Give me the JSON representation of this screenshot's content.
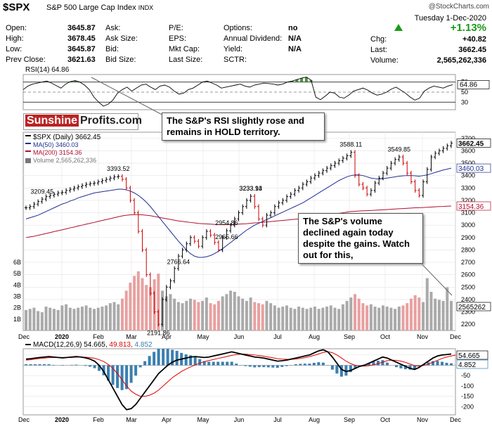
{
  "header": {
    "symbol": "$SPX",
    "name": "S&P 500 Large Cap Index",
    "exchange": "INDX",
    "copyright": "@StockCharts.com",
    "date": "Tuesday 1-Dec-2020",
    "col1": [
      {
        "label": "Open:",
        "value": "3645.87"
      },
      {
        "label": "High:",
        "value": "3678.45"
      },
      {
        "label": "Low:",
        "value": "3645.87"
      },
      {
        "label": "Prev Close:",
        "value": "3621.63"
      }
    ],
    "col2": [
      {
        "label": "Ask:",
        "value": ""
      },
      {
        "label": "Ask Size:",
        "value": ""
      },
      {
        "label": "Bid:",
        "value": ""
      },
      {
        "label": "Bid Size:",
        "value": ""
      }
    ],
    "col3": [
      {
        "label": "P/E:",
        "value": ""
      },
      {
        "label": "EPS:",
        "value": ""
      },
      {
        "label": "Mkt Cap:",
        "value": ""
      },
      {
        "label": "Last Size:",
        "value": ""
      }
    ],
    "col4": [
      {
        "label": "Options:",
        "value": "no"
      },
      {
        "label": "Annual Dividend:",
        "value": "N/A"
      },
      {
        "label": "Yield:",
        "value": "N/A"
      },
      {
        "label": "SCTR:",
        "value": ""
      }
    ],
    "change_pct": "+1.13%",
    "chg_label": "Chg:",
    "chg_value": "+40.82",
    "last_label": "Last:",
    "last_value": "3662.45",
    "volume_label": "Volume:",
    "volume_value": "2,565,262,336"
  },
  "callouts": {
    "rsi": "The S&P's RSI slightly rose and remains in HOLD territory.",
    "volume": "The S&P's volume declined again today despite the gains. Watch out for this,"
  },
  "logo": {
    "part1": "Sunshine",
    "part2": "Profits.com"
  },
  "colors": {
    "up": "#000000",
    "down": "#cc0000",
    "ma50": "#1f2f8f",
    "ma200": "#b01030",
    "vol_up": "#aaaaaa",
    "vol_down": "#e8a0a0",
    "rsi_fill": "#4f8f3f",
    "macd": "#000000",
    "signal": "#e00000",
    "hist": "#3a7fb0"
  },
  "chart_data": [
    {
      "type": "line",
      "panel": "RSI",
      "title": "RSI(14) 64.86",
      "yticks": [
        70,
        50,
        30
      ],
      "last_value": 64.86,
      "ylim": [
        15,
        85
      ],
      "values": [
        55,
        62,
        66,
        68,
        70,
        72,
        68,
        63,
        58,
        66,
        71,
        73,
        70,
        64,
        55,
        40,
        30,
        22,
        26,
        34,
        48,
        55,
        60,
        52,
        58,
        64,
        66,
        60,
        55,
        62,
        64,
        60,
        52,
        46,
        48,
        55,
        58,
        64,
        70,
        72,
        68,
        64,
        58,
        60,
        62,
        64,
        66,
        62,
        60,
        64,
        66,
        68,
        67,
        66,
        64,
        66,
        70,
        72,
        75,
        78,
        80,
        74,
        40,
        35,
        42,
        50,
        48,
        40,
        38,
        44,
        52,
        55,
        58,
        54,
        48,
        44,
        46,
        50,
        56,
        60,
        54,
        48,
        40,
        34,
        38,
        52,
        58,
        62,
        60,
        58,
        62,
        64.86
      ]
    },
    {
      "type": "line",
      "panel": "Price",
      "title": "$SPX (Daily) 3662.45",
      "legend": [
        "$SPX (Daily) 3662.45",
        "MA(50) 3460.03",
        "MA(200) 3154.36",
        "Volume 2,565,262,336"
      ],
      "x_labels": [
        "Dec",
        "2020",
        "Feb",
        "Mar",
        "Apr",
        "May",
        "Jun",
        "Jul",
        "Aug",
        "Sep",
        "Oct",
        "Nov",
        "Dec"
      ],
      "yticks": [
        3700,
        3600,
        3500,
        3400,
        3300,
        3200,
        3100,
        3000,
        2900,
        2800,
        2700,
        2600,
        2500,
        2400,
        2300,
        2200
      ],
      "ylim": [
        2150,
        3750
      ],
      "annotations": [
        {
          "label": "3393.52",
          "value": 3393.52
        },
        {
          "label": "2191.86",
          "value": 2191.86
        },
        {
          "label": "2954.86",
          "value": 2954.86
        },
        {
          "label": "2766.64",
          "value": 2766.64
        },
        {
          "label": "3233.13",
          "value": 3233.13
        },
        {
          "label": "2965.66",
          "value": 2965.66
        },
        {
          "label": "3588.11",
          "value": 3588.11
        },
        {
          "label": "3209.45",
          "value": 3209.45
        },
        {
          "label": "3549.85",
          "value": 3549.85
        },
        {
          "label": "3233.94",
          "value": 3233.94
        }
      ],
      "right_labels": [
        {
          "label": "3662.45",
          "value": 3662.45
        },
        {
          "label": "3460.03",
          "value": 3460.03
        },
        {
          "label": "3154.36",
          "value": 3154.36
        },
        {
          "label": "2565262",
          "value": 2420
        }
      ],
      "close": [
        3140,
        3150,
        3170,
        3190,
        3210,
        3230,
        3240,
        3250,
        3260,
        3265,
        3280,
        3290,
        3300,
        3310,
        3320,
        3330,
        3335,
        3340,
        3350,
        3360,
        3370,
        3380,
        3390,
        3393,
        3370,
        3300,
        3200,
        3100,
        2950,
        2800,
        2600,
        2450,
        2300,
        2200,
        2400,
        2500,
        2550,
        2650,
        2750,
        2800,
        2850,
        2900,
        2870,
        2830,
        2900,
        2950,
        2920,
        2860,
        2800,
        2900,
        2955,
        3000,
        3050,
        3100,
        3150,
        3200,
        3233,
        3150,
        3050,
        3000,
        3080,
        3100,
        3150,
        3180,
        3200,
        3230,
        3250,
        3280,
        3300,
        3330,
        3350,
        3380,
        3400,
        3420,
        3440,
        3460,
        3480,
        3500,
        3520,
        3540,
        3560,
        3588,
        3400,
        3330,
        3300,
        3250,
        3280,
        3340,
        3380,
        3420,
        3460,
        3500,
        3530,
        3550,
        3500,
        3420,
        3350,
        3280,
        3240,
        3350,
        3450,
        3550,
        3580,
        3600,
        3620,
        3640,
        3662
      ],
      "ma50": [
        3050,
        3060,
        3070,
        3080,
        3095,
        3110,
        3125,
        3140,
        3155,
        3170,
        3180,
        3195,
        3205,
        3220,
        3230,
        3240,
        3250,
        3260,
        3265,
        3270,
        3275,
        3280,
        3285,
        3290,
        3290,
        3285,
        3275,
        3260,
        3240,
        3215,
        3185,
        3150,
        3110,
        3070,
        3030,
        2990,
        2950,
        2910,
        2870,
        2835,
        2800,
        2770,
        2750,
        2740,
        2740,
        2745,
        2755,
        2770,
        2790,
        2810,
        2835,
        2860,
        2885,
        2910,
        2935,
        2960,
        2980,
        3000,
        3015,
        3030,
        3045,
        3060,
        3075,
        3090,
        3105,
        3120,
        3135,
        3150,
        3165,
        3180,
        3200,
        3220,
        3240,
        3260,
        3280,
        3300,
        3320,
        3340,
        3360,
        3375,
        3390,
        3400,
        3405,
        3405,
        3400,
        3390,
        3380,
        3375,
        3372,
        3375,
        3380,
        3385,
        3390,
        3395,
        3398,
        3400,
        3400,
        3398,
        3395,
        3400,
        3405,
        3415,
        3425,
        3435,
        3445,
        3452,
        3460
      ],
      "ma200": [
        2900,
        2905,
        2910,
        2918,
        2925,
        2932,
        2940,
        2948,
        2955,
        2962,
        2970,
        2978,
        2985,
        2993,
        3000,
        3008,
        3015,
        3022,
        3030,
        3038,
        3045,
        3052,
        3060,
        3068,
        3075,
        3080,
        3083,
        3085,
        3085,
        3083,
        3080,
        3076,
        3070,
        3064,
        3058,
        3052,
        3046,
        3040,
        3034,
        3030,
        3026,
        3022,
        3018,
        3014,
        3012,
        3010,
        3008,
        3006,
        3005,
        3004,
        3004,
        3005,
        3006,
        3008,
        3010,
        3012,
        3015,
        3018,
        3020,
        3023,
        3026,
        3029,
        3032,
        3035,
        3038,
        3041,
        3044,
        3047,
        3050,
        3054,
        3058,
        3062,
        3066,
        3070,
        3075,
        3080,
        3085,
        3090,
        3095,
        3100,
        3105,
        3110,
        3112,
        3114,
        3116,
        3117,
        3118,
        3120,
        3122,
        3124,
        3126,
        3128,
        3130,
        3132,
        3134,
        3136,
        3138,
        3140,
        3141,
        3142,
        3144,
        3146,
        3148,
        3150,
        3151,
        3153,
        3154
      ],
      "volume_B": [
        1.8,
        1.9,
        2.0,
        1.7,
        1.6,
        2.1,
        2.0,
        1.9,
        1.8,
        2.2,
        2.3,
        2.0,
        1.9,
        2.0,
        2.1,
        2.2,
        2.0,
        1.9,
        2.0,
        2.1,
        2.2,
        2.4,
        2.5,
        2.3,
        2.8,
        3.5,
        4.2,
        4.8,
        5.2,
        4.6,
        4.0,
        3.8,
        4.5,
        5.0,
        3.5,
        3.0,
        3.2,
        2.8,
        2.5,
        2.4,
        2.6,
        2.8,
        2.7,
        2.5,
        2.6,
        2.9,
        2.4,
        2.3,
        2.6,
        3.0,
        3.2,
        3.5,
        3.4,
        3.0,
        2.8,
        2.6,
        2.9,
        2.5,
        2.4,
        2.3,
        2.6,
        2.4,
        2.2,
        2.0,
        2.1,
        2.2,
        2.0,
        1.9,
        2.1,
        2.0,
        1.9,
        2.0,
        2.1,
        1.9,
        2.0,
        2.1,
        2.2,
        2.0,
        1.9,
        2.3,
        2.6,
        2.9,
        3.2,
        2.8,
        2.4,
        2.2,
        2.3,
        2.1,
        2.0,
        2.2,
        2.1,
        2.0,
        1.9,
        2.1,
        2.2,
        2.4,
        2.8,
        3.1,
        2.9,
        2.5,
        4.6,
        3.4,
        2.8,
        2.7,
        2.6,
        3.8,
        2.6
      ],
      "vol_yticks": [
        "6B",
        "5B",
        "4B",
        "3B",
        "2B",
        "1B"
      ]
    },
    {
      "type": "line",
      "panel": "MACD",
      "title": "MACD(12,26,9) 54.665, 49.813, 4.852",
      "legend_parts": [
        "MACD(12,26,9) 54.665,",
        "49.813,",
        "4.852"
      ],
      "yticks": [
        50,
        0,
        -50,
        -100,
        -150,
        -200
      ],
      "right_labels": [
        {
          "label": "54.665",
          "value": 54.665
        },
        {
          "label": "4.852",
          "value": 4.852
        }
      ],
      "ylim": [
        -240,
        80
      ],
      "macd": [
        30,
        32,
        35,
        38,
        40,
        42,
        40,
        38,
        36,
        38,
        40,
        42,
        40,
        36,
        30,
        20,
        0,
        -30,
        -70,
        -110,
        -150,
        -190,
        -215,
        -210,
        -190,
        -160,
        -130,
        -100,
        -70,
        -40,
        -20,
        0,
        15,
        25,
        30,
        35,
        40,
        42,
        40,
        38,
        40,
        45,
        50,
        55,
        60,
        65,
        60,
        55,
        50,
        45,
        40,
        38,
        35,
        30,
        25,
        20,
        22,
        25,
        30,
        35,
        40,
        45,
        50,
        60,
        70,
        75,
        65,
        40,
        10,
        -20,
        -30,
        -25,
        -15,
        -5,
        0,
        10,
        20,
        30,
        40,
        35,
        25,
        15,
        5,
        -5,
        -15,
        -20,
        -10,
        5,
        20,
        35,
        45,
        50,
        52,
        54.665
      ],
      "signal": [
        25,
        27,
        30,
        33,
        35,
        37,
        38,
        38,
        38,
        38,
        38,
        39,
        40,
        39,
        37,
        34,
        27,
        18,
        4,
        -15,
        -40,
        -70,
        -100,
        -125,
        -140,
        -150,
        -150,
        -145,
        -135,
        -120,
        -100,
        -80,
        -60,
        -45,
        -30,
        -18,
        -8,
        2,
        10,
        18,
        23,
        28,
        33,
        38,
        43,
        48,
        52,
        54,
        54,
        52,
        50,
        47,
        44,
        40,
        36,
        32,
        30,
        29,
        29,
        30,
        33,
        37,
        42,
        48,
        55,
        62,
        66,
        61,
        50,
        35,
        20,
        8,
        0,
        -4,
        -4,
        -2,
        2,
        8,
        15,
        22,
        25,
        24,
        20,
        14,
        6,
        -2,
        -4,
        -1,
        6,
        15,
        24,
        33,
        40,
        45,
        49.813
      ]
    }
  ]
}
